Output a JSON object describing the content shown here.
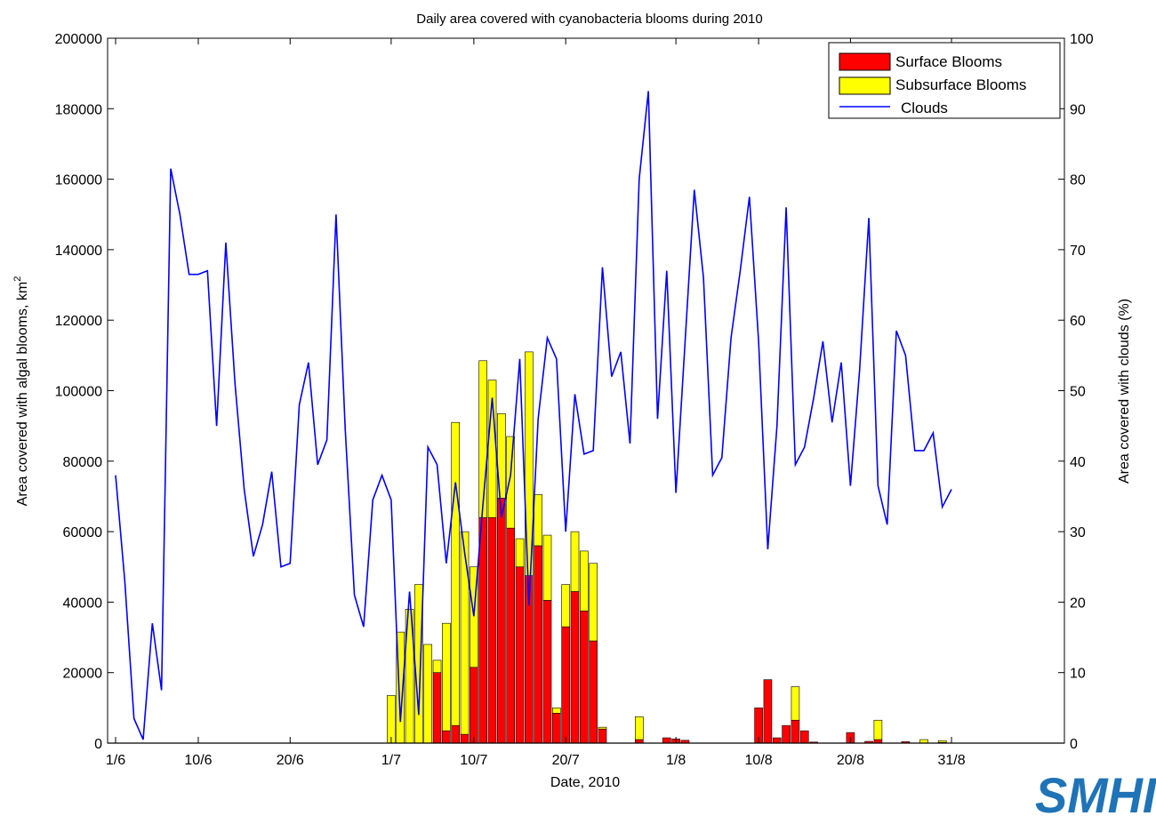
{
  "chart_data": {
    "type": "bar",
    "title": "Daily area covered with cyanobacteria blooms during 2010",
    "xlabel": "Date, 2010",
    "ylabel": "Area covered with algal blooms, km",
    "ylabel_superscript": "2",
    "y2label": "Area covered with clouds (%)",
    "x_tick_labels": [
      {
        "day": 1,
        "label": "1/6"
      },
      {
        "day": 10,
        "label": "10/6"
      },
      {
        "day": 20,
        "label": "20/6"
      },
      {
        "day": 31,
        "label": "1/7"
      },
      {
        "day": 40,
        "label": "10/7"
      },
      {
        "day": 50,
        "label": "20/7"
      },
      {
        "day": 62,
        "label": "1/8"
      },
      {
        "day": 71,
        "label": "10/8"
      },
      {
        "day": 81,
        "label": "20/8"
      },
      {
        "day": 92,
        "label": "31/8"
      }
    ],
    "xlim": [
      "1/6",
      "31/8"
    ],
    "ylim": [
      0,
      200000
    ],
    "y_ticks": [
      0,
      20000,
      40000,
      60000,
      80000,
      100000,
      120000,
      140000,
      160000,
      180000,
      200000
    ],
    "y2lim": [
      0,
      100
    ],
    "y2_ticks": [
      0,
      10,
      20,
      30,
      40,
      50,
      60,
      70,
      80,
      90,
      100
    ],
    "grid": false,
    "legend_position": "top-right",
    "stacked": true,
    "series": [
      {
        "name": "Surface Blooms",
        "color": "#ff0000",
        "axis": "left",
        "kind": "bar",
        "points": [
          {
            "date": "5/7",
            "value": 0
          },
          {
            "date": "6/7",
            "value": 20000
          },
          {
            "date": "7/7",
            "value": 3500
          },
          {
            "date": "8/7",
            "value": 5000
          },
          {
            "date": "9/7",
            "value": 2500
          },
          {
            "date": "10/7",
            "value": 21500
          },
          {
            "date": "11/7",
            "value": 64000
          },
          {
            "date": "12/7",
            "value": 64000
          },
          {
            "date": "13/7",
            "value": 69500
          },
          {
            "date": "14/7",
            "value": 61000
          },
          {
            "date": "15/7",
            "value": 50000
          },
          {
            "date": "16/7",
            "value": 47500
          },
          {
            "date": "17/7",
            "value": 56000
          },
          {
            "date": "18/7",
            "value": 40500
          },
          {
            "date": "19/7",
            "value": 8500
          },
          {
            "date": "20/7",
            "value": 33000
          },
          {
            "date": "21/7",
            "value": 43000
          },
          {
            "date": "22/7",
            "value": 37500
          },
          {
            "date": "23/7",
            "value": 29000
          },
          {
            "date": "24/7",
            "value": 4000
          },
          {
            "date": "28/7",
            "value": 1000
          },
          {
            "date": "31/7",
            "value": 1500
          },
          {
            "date": "1/8",
            "value": 1200
          },
          {
            "date": "2/8",
            "value": 800
          },
          {
            "date": "10/8",
            "value": 10000
          },
          {
            "date": "11/8",
            "value": 18000
          },
          {
            "date": "12/8",
            "value": 1500
          },
          {
            "date": "13/8",
            "value": 5000
          },
          {
            "date": "14/8",
            "value": 6500
          },
          {
            "date": "15/8",
            "value": 3500
          },
          {
            "date": "16/8",
            "value": 300
          },
          {
            "date": "20/8",
            "value": 3000
          },
          {
            "date": "22/8",
            "value": 500
          },
          {
            "date": "23/8",
            "value": 1000
          },
          {
            "date": "26/8",
            "value": 400
          },
          {
            "date": "30/8",
            "value": 200
          }
        ]
      },
      {
        "name": "Subsurface Blooms",
        "color": "#ffff00",
        "axis": "left",
        "kind": "bar",
        "points": [
          {
            "date": "1/7",
            "value": 13500
          },
          {
            "date": "2/7",
            "value": 31500
          },
          {
            "date": "3/7",
            "value": 38000
          },
          {
            "date": "4/7",
            "value": 45000
          },
          {
            "date": "5/7",
            "value": 28000
          },
          {
            "date": "6/7",
            "value": 3500
          },
          {
            "date": "7/7",
            "value": 30500
          },
          {
            "date": "8/7",
            "value": 86000
          },
          {
            "date": "9/7",
            "value": 57500
          },
          {
            "date": "10/7",
            "value": 28500
          },
          {
            "date": "11/7",
            "value": 44500
          },
          {
            "date": "12/7",
            "value": 39000
          },
          {
            "date": "13/7",
            "value": 24000
          },
          {
            "date": "14/7",
            "value": 26000
          },
          {
            "date": "15/7",
            "value": 8000
          },
          {
            "date": "16/7",
            "value": 63500
          },
          {
            "date": "17/7",
            "value": 14500
          },
          {
            "date": "18/7",
            "value": 18500
          },
          {
            "date": "19/7",
            "value": 1500
          },
          {
            "date": "20/7",
            "value": 12000
          },
          {
            "date": "21/7",
            "value": 17000
          },
          {
            "date": "22/7",
            "value": 17000
          },
          {
            "date": "23/7",
            "value": 22000
          },
          {
            "date": "24/7",
            "value": 500
          },
          {
            "date": "28/7",
            "value": 6500
          },
          {
            "date": "14/8",
            "value": 9500
          },
          {
            "date": "23/8",
            "value": 5500
          },
          {
            "date": "28/8",
            "value": 1000
          },
          {
            "date": "30/8",
            "value": 500
          }
        ]
      },
      {
        "name": "Clouds",
        "color": "#0000ff",
        "axis": "right",
        "kind": "line",
        "points": [
          {
            "date": "1/6",
            "value": 38
          },
          {
            "date": "2/6",
            "value": 23
          },
          {
            "date": "3/6",
            "value": 3.5
          },
          {
            "date": "4/6",
            "value": 0.5
          },
          {
            "date": "5/6",
            "value": 17
          },
          {
            "date": "6/6",
            "value": 7.5
          },
          {
            "date": "7/6",
            "value": 81.5
          },
          {
            "date": "8/6",
            "value": 75
          },
          {
            "date": "9/6",
            "value": 66.5
          },
          {
            "date": "10/6",
            "value": 66.5
          },
          {
            "date": "11/6",
            "value": 67
          },
          {
            "date": "12/6",
            "value": 45
          },
          {
            "date": "13/6",
            "value": 71
          },
          {
            "date": "14/6",
            "value": 51
          },
          {
            "date": "15/6",
            "value": 36
          },
          {
            "date": "16/6",
            "value": 26.5
          },
          {
            "date": "17/6",
            "value": 31
          },
          {
            "date": "18/6",
            "value": 38.5
          },
          {
            "date": "19/6",
            "value": 25
          },
          {
            "date": "20/6",
            "value": 25.5
          },
          {
            "date": "21/6",
            "value": 48
          },
          {
            "date": "22/6",
            "value": 54
          },
          {
            "date": "23/6",
            "value": 39.5
          },
          {
            "date": "24/6",
            "value": 43
          },
          {
            "date": "25/6",
            "value": 75
          },
          {
            "date": "26/6",
            "value": 44.5
          },
          {
            "date": "27/6",
            "value": 21
          },
          {
            "date": "28/6",
            "value": 16.5
          },
          {
            "date": "29/6",
            "value": 34.5
          },
          {
            "date": "30/6",
            "value": 38
          },
          {
            "date": "1/7",
            "value": 34.5
          },
          {
            "date": "2/7",
            "value": 3
          },
          {
            "date": "3/7",
            "value": 21.5
          },
          {
            "date": "4/7",
            "value": 4
          },
          {
            "date": "5/7",
            "value": 42
          },
          {
            "date": "6/7",
            "value": 39.5
          },
          {
            "date": "7/7",
            "value": 25.5
          },
          {
            "date": "8/7",
            "value": 37
          },
          {
            "date": "9/7",
            "value": 27
          },
          {
            "date": "10/7",
            "value": 18
          },
          {
            "date": "11/7",
            "value": 34
          },
          {
            "date": "12/7",
            "value": 49
          },
          {
            "date": "13/7",
            "value": 32
          },
          {
            "date": "14/7",
            "value": 38
          },
          {
            "date": "15/7",
            "value": 54.5
          },
          {
            "date": "16/7",
            "value": 19.5
          },
          {
            "date": "17/7",
            "value": 46
          },
          {
            "date": "18/7",
            "value": 57.5
          },
          {
            "date": "19/7",
            "value": 54.5
          },
          {
            "date": "20/7",
            "value": 30
          },
          {
            "date": "21/7",
            "value": 49.5
          },
          {
            "date": "22/7",
            "value": 41
          },
          {
            "date": "23/7",
            "value": 41.5
          },
          {
            "date": "24/7",
            "value": 67.5
          },
          {
            "date": "25/7",
            "value": 52
          },
          {
            "date": "26/7",
            "value": 55.5
          },
          {
            "date": "27/7",
            "value": 42.5
          },
          {
            "date": "28/7",
            "value": 80
          },
          {
            "date": "29/7",
            "value": 92.5
          },
          {
            "date": "30/7",
            "value": 46
          },
          {
            "date": "31/7",
            "value": 67
          },
          {
            "date": "1/8",
            "value": 35.5
          },
          {
            "date": "2/8",
            "value": 57
          },
          {
            "date": "3/8",
            "value": 78.5
          },
          {
            "date": "4/8",
            "value": 66
          },
          {
            "date": "5/8",
            "value": 38
          },
          {
            "date": "6/8",
            "value": 40.5
          },
          {
            "date": "7/8",
            "value": 57.5
          },
          {
            "date": "8/8",
            "value": 67
          },
          {
            "date": "9/8",
            "value": 77.5
          },
          {
            "date": "10/8",
            "value": 57
          },
          {
            "date": "11/8",
            "value": 27.5
          },
          {
            "date": "12/8",
            "value": 45
          },
          {
            "date": "13/8",
            "value": 76
          },
          {
            "date": "14/8",
            "value": 39.5
          },
          {
            "date": "15/8",
            "value": 42
          },
          {
            "date": "16/8",
            "value": 49
          },
          {
            "date": "17/8",
            "value": 57
          },
          {
            "date": "18/8",
            "value": 45.5
          },
          {
            "date": "19/8",
            "value": 54
          },
          {
            "date": "20/8",
            "value": 36.5
          },
          {
            "date": "21/8",
            "value": 53
          },
          {
            "date": "22/8",
            "value": 74.5
          },
          {
            "date": "23/8",
            "value": 36.5
          },
          {
            "date": "24/8",
            "value": 31
          },
          {
            "date": "25/8",
            "value": 58.5
          },
          {
            "date": "26/8",
            "value": 55
          },
          {
            "date": "27/8",
            "value": 41.5
          },
          {
            "date": "28/8",
            "value": 41.5
          },
          {
            "date": "29/8",
            "value": 44
          },
          {
            "date": "30/8",
            "value": 33.5
          },
          {
            "date": "31/8",
            "value": 36
          }
        ]
      }
    ]
  },
  "logo": {
    "text": "SMHI",
    "color": "#1f73b7"
  }
}
